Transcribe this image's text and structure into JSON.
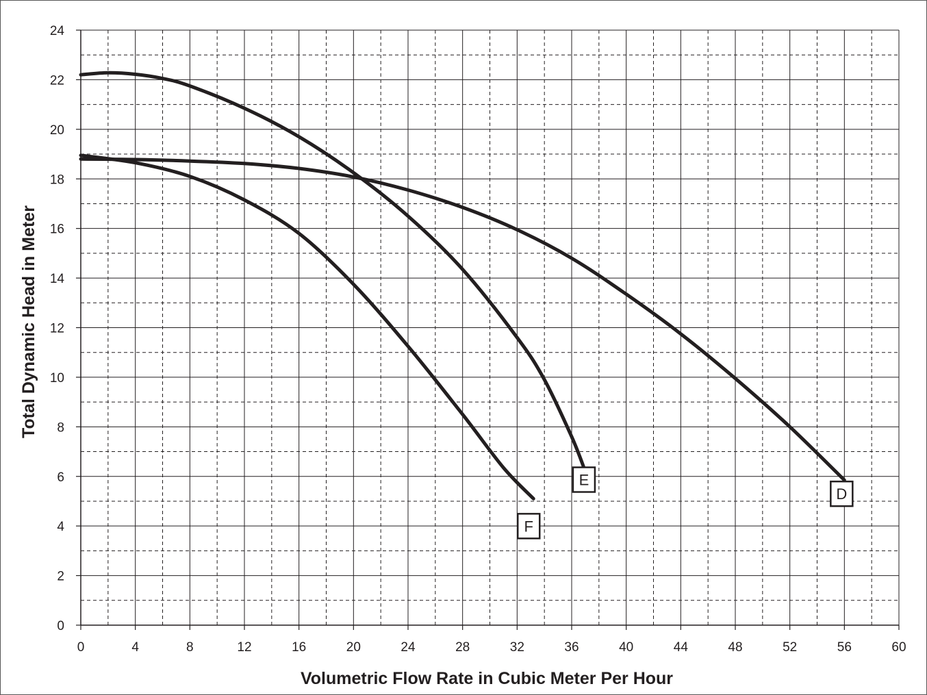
{
  "chart_data": {
    "type": "line",
    "title": "",
    "xlabel": "Volumetric Flow Rate in Cubic Meter Per Hour",
    "ylabel": "Total Dynamic Head in Meter",
    "xlim": [
      0,
      60
    ],
    "ylim": [
      0,
      24
    ],
    "x_ticks": [
      0,
      4,
      8,
      12,
      16,
      20,
      24,
      28,
      32,
      36,
      40,
      44,
      48,
      52,
      56,
      60
    ],
    "y_ticks": [
      0,
      2,
      4,
      6,
      8,
      10,
      12,
      14,
      16,
      18,
      20,
      22,
      24
    ],
    "grid": {
      "major": true,
      "minor_dashed": true
    },
    "line_color": "#231f20",
    "series": [
      {
        "name": "D",
        "points": [
          [
            0,
            18.8
          ],
          [
            4,
            18.78
          ],
          [
            8,
            18.72
          ],
          [
            12,
            18.62
          ],
          [
            16,
            18.42
          ],
          [
            20,
            18.08
          ],
          [
            24,
            17.55
          ],
          [
            28,
            16.85
          ],
          [
            32,
            15.95
          ],
          [
            36,
            14.8
          ],
          [
            40,
            13.35
          ],
          [
            44,
            11.75
          ],
          [
            48,
            9.95
          ],
          [
            52,
            8.0
          ],
          [
            56,
            5.85
          ]
        ]
      },
      {
        "name": "E",
        "points": [
          [
            0,
            22.2
          ],
          [
            2,
            22.28
          ],
          [
            4,
            22.22
          ],
          [
            6,
            22.05
          ],
          [
            8,
            21.75
          ],
          [
            12,
            20.85
          ],
          [
            16,
            19.7
          ],
          [
            20,
            18.25
          ],
          [
            24,
            16.5
          ],
          [
            28,
            14.35
          ],
          [
            32,
            11.6
          ],
          [
            34,
            9.9
          ],
          [
            36,
            7.6
          ],
          [
            37,
            6.2
          ]
        ]
      },
      {
        "name": "F",
        "points": [
          [
            0,
            18.95
          ],
          [
            4,
            18.65
          ],
          [
            8,
            18.1
          ],
          [
            12,
            17.15
          ],
          [
            16,
            15.8
          ],
          [
            20,
            13.75
          ],
          [
            24,
            11.25
          ],
          [
            28,
            8.5
          ],
          [
            31,
            6.35
          ],
          [
            33.2,
            5.1
          ]
        ]
      }
    ]
  }
}
